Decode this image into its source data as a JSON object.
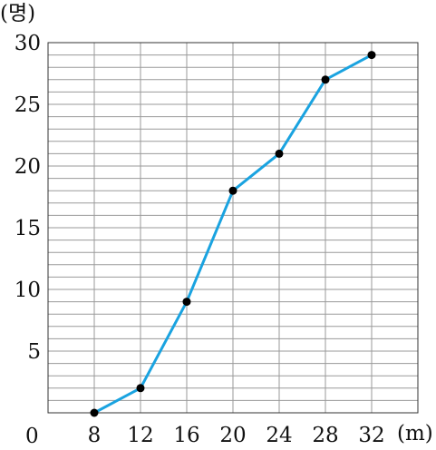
{
  "chart_data": {
    "type": "line",
    "x": [
      8,
      12,
      16,
      20,
      24,
      28,
      32
    ],
    "y": [
      0,
      2,
      9,
      18,
      21,
      27,
      29
    ],
    "xlim": [
      4,
      36
    ],
    "ylim": [
      0,
      30
    ],
    "x_ticks": [
      "8",
      "12",
      "16",
      "20",
      "24",
      "28",
      "32"
    ],
    "y_ticks": [
      "5",
      "10",
      "15",
      "20",
      "25",
      "30"
    ],
    "origin_label": "0",
    "x_unit": "(m)",
    "y_unit": "(명)",
    "x_grid_step": 4,
    "y_grid_step": 1,
    "grid": true,
    "colors": {
      "line": "#1aa3e0",
      "marker": "#000000",
      "grid": "#9a9a9a",
      "axis": "#333333"
    }
  }
}
